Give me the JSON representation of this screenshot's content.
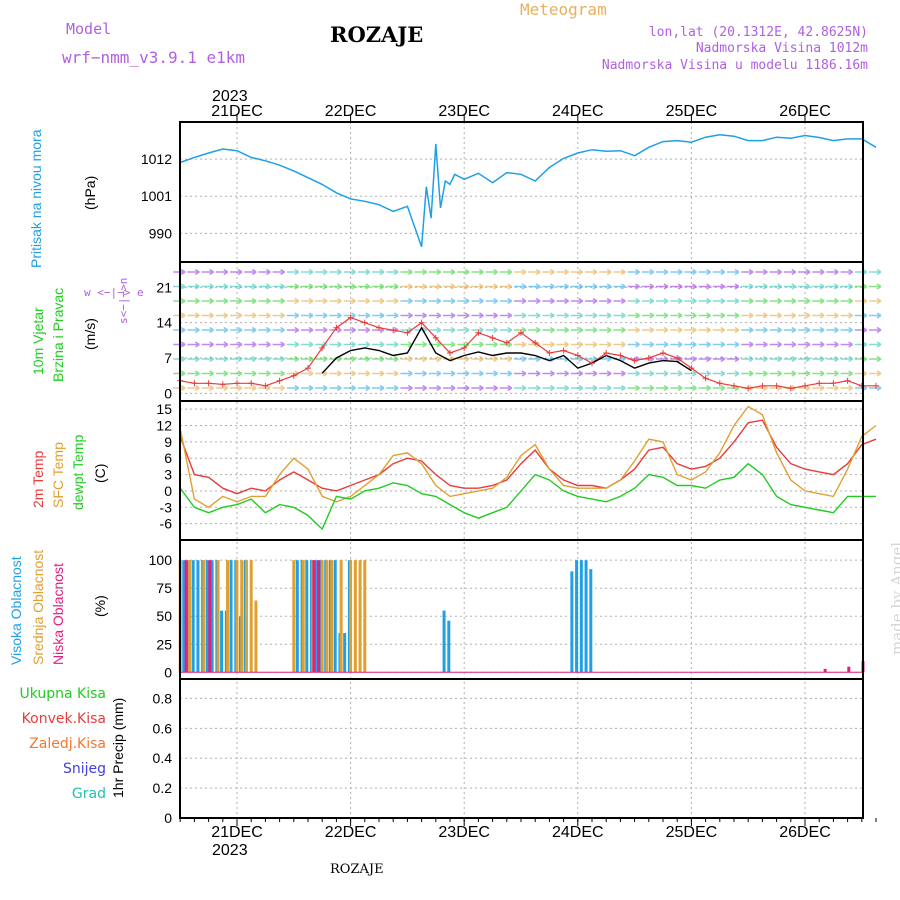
{
  "header": {
    "model_label": "Model",
    "model_name": "wrf−nmm_v3.9.1  e1km",
    "title": "ROZAJE",
    "meteogram_label": "Meteogram",
    "lonlat": "lon,lat (20.1312E, 42.8625N)",
    "elevation": "Nadmorska Visina 1012m",
    "model_elevation": "Nadmorska Visina u modelu 1186.16m",
    "year_top": "2023",
    "year_bottom": "2023",
    "footer_title": "ROZAJE",
    "watermark": "made by Angel"
  },
  "colors": {
    "pressure": "#1ea0e6",
    "temp2m": "#e83c3c",
    "sfc": "#e0a030",
    "dewpt": "#22cc22",
    "visoka": "#1ea0e6",
    "srednja": "#e0a030",
    "niska": "#e0207f",
    "ukupna": "#22cc22",
    "konvek": "#e83c3c",
    "zaledj": "#f07830",
    "snijeg": "#4040e0",
    "grad": "#20c0b0",
    "purple": "#b060e0",
    "orange": "#e8b060"
  },
  "panel_labels": {
    "pressure": {
      "name": "Pritisak na nivou mora",
      "unit": "(hPa)"
    },
    "wind": {
      "name1": "10m Vjetar",
      "name2": "Brzina i Pravac",
      "unit": "(m/s)",
      "compass": "w <−|−> e",
      "compass_v": "s<−|−>n"
    },
    "temp": {
      "name1": "2m Temp",
      "name2": "SFC Temp",
      "name3": "dewpt Temp",
      "unit": "(C)"
    },
    "cloud": {
      "name1": "Visoka Oblacnost",
      "name2": "Srednja Oblacnost",
      "name3": "Niska Oblacnost",
      "unit": "(%)"
    },
    "precip": {
      "unit": "1hr Precip (mm)",
      "legend": [
        "Ukupna Kisa",
        "Konvek.Kisa",
        "Zaledj.Kisa",
        "Snijeg",
        "Grad"
      ]
    }
  },
  "chart_data": [
    {
      "type": "line",
      "title": "",
      "ylabel": "(hPa)",
      "categories": [
        "21DEC",
        "22DEC",
        "23DEC",
        "24DEC",
        "25DEC",
        "26DEC"
      ],
      "yticks": [
        990,
        1001,
        1012
      ],
      "ylim": [
        981.5,
        1023
      ],
      "series": [
        {
          "name": "Pritisak na nivou mora",
          "x": [
            0,
            3,
            6,
            9,
            12,
            15,
            18,
            21,
            24,
            27,
            30,
            33,
            36,
            39,
            42,
            45,
            48,
            51,
            52,
            53,
            54,
            55,
            56,
            57,
            58,
            60,
            63,
            66,
            69,
            72,
            75,
            78,
            81,
            84,
            87,
            90,
            93,
            96,
            99,
            102,
            105,
            108,
            111,
            114,
            117,
            120,
            123,
            126,
            129,
            132,
            135,
            138,
            141,
            144,
            147
          ],
          "y": [
            1011,
            1012.5,
            1013.8,
            1015,
            1014.5,
            1012.5,
            1011.5,
            1010.2,
            1008.5,
            1006.5,
            1004.5,
            1002,
            1000.2,
            999.5,
            998.5,
            996.5,
            998,
            986,
            1003.8,
            994.5,
            1016.5,
            997.5,
            1005.5,
            1004.5,
            1007.5,
            1006,
            1007.8,
            1005,
            1008,
            1007.5,
            1005.5,
            1009.5,
            1012.2,
            1013.8,
            1014.8,
            1014.3,
            1014.5,
            1013,
            1015.5,
            1017.2,
            1017.5,
            1017,
            1018.5,
            1019.2,
            1018.8,
            1017.5,
            1017.5,
            1018.5,
            1018.2,
            1019,
            1018.4,
            1017.5,
            1018,
            1018,
            1015.5
          ]
        }
      ]
    },
    {
      "type": "line",
      "title": "",
      "ylabel": "(m/s)",
      "yticks": [
        0,
        7,
        14,
        21
      ],
      "ylim": [
        -1.5,
        26
      ],
      "series": [
        {
          "name": "10m wind speed",
          "x": [
            0,
            3,
            6,
            9,
            12,
            15,
            18,
            21,
            24,
            27,
            30,
            33,
            36,
            39,
            42,
            45,
            48,
            51,
            54,
            57,
            60,
            63,
            66,
            69,
            72,
            75,
            78,
            81,
            84,
            87,
            90,
            93,
            96,
            99,
            102,
            105,
            108,
            111,
            114,
            117,
            120,
            123,
            126,
            129,
            132,
            135,
            138,
            141,
            144,
            147
          ],
          "y": [
            2.5,
            2,
            2,
            1.8,
            2,
            2,
            1.5,
            2.5,
            3.5,
            5,
            9,
            13,
            15,
            14,
            13,
            12.5,
            12,
            14,
            11,
            8,
            9,
            12,
            11,
            10,
            12,
            10,
            8,
            8.5,
            7.5,
            6,
            8,
            7.5,
            6.5,
            7,
            8,
            7,
            5,
            3,
            2,
            1.5,
            1,
            1.5,
            1.5,
            1,
            1.5,
            2,
            2,
            2.5,
            1.5,
            1.5
          ]
        },
        {
          "name": "10m gust",
          "x": [
            30,
            33,
            36,
            39,
            42,
            45,
            48,
            51,
            54,
            57,
            60,
            63,
            66,
            69,
            72,
            75,
            78,
            81,
            84,
            87,
            90,
            93,
            96,
            99,
            102,
            105,
            108
          ],
          "y": [
            4,
            7,
            8.5,
            9,
            8.5,
            7.5,
            8,
            13,
            8,
            6.5,
            7.5,
            8.2,
            7.5,
            8,
            8,
            7.5,
            6.5,
            7.5,
            5,
            6,
            7.5,
            6.5,
            5,
            6,
            6.5,
            6.3,
            4.5
          ]
        }
      ]
    },
    {
      "type": "line",
      "title": "",
      "ylabel": "(C)",
      "yticks": [
        -6,
        -3,
        0,
        3,
        6,
        9,
        12,
        15
      ],
      "ylim": [
        -9,
        16.5
      ],
      "series": [
        {
          "name": "2m Temp",
          "x": [
            0,
            3,
            6,
            9,
            12,
            15,
            18,
            21,
            24,
            27,
            30,
            33,
            36,
            39,
            42,
            45,
            48,
            51,
            54,
            57,
            60,
            63,
            66,
            69,
            72,
            75,
            78,
            81,
            84,
            87,
            90,
            93,
            96,
            99,
            102,
            105,
            108,
            111,
            114,
            117,
            120,
            123,
            126,
            129,
            132,
            135,
            138,
            141,
            144,
            147
          ],
          "y": [
            10,
            3,
            2.5,
            0.5,
            -0.5,
            0.5,
            0,
            2,
            3.5,
            2,
            0.5,
            0,
            1,
            2,
            3,
            5,
            6,
            5.5,
            3,
            1,
            0.5,
            0.5,
            1,
            2,
            5,
            7.5,
            4,
            2,
            1,
            1,
            0.5,
            2,
            4,
            7.5,
            8,
            5,
            4,
            4.5,
            6,
            9,
            12.5,
            13,
            8,
            5,
            4,
            3.5,
            3,
            5,
            8.5,
            9.5
          ]
        },
        {
          "name": "SFC Temp",
          "x": [
            0,
            3,
            6,
            9,
            12,
            15,
            18,
            21,
            24,
            27,
            30,
            33,
            36,
            39,
            42,
            45,
            48,
            51,
            54,
            57,
            60,
            63,
            66,
            69,
            72,
            75,
            78,
            81,
            84,
            87,
            90,
            93,
            96,
            99,
            102,
            105,
            108,
            111,
            114,
            117,
            120,
            123,
            126,
            129,
            132,
            135,
            138,
            141,
            144,
            147
          ],
          "y": [
            11.5,
            -1.5,
            -3,
            -1,
            -2,
            -1,
            -1,
            3,
            6,
            4,
            -1,
            -2,
            -1,
            1,
            3,
            6.5,
            7,
            5,
            1,
            -1,
            -0.5,
            0,
            0.5,
            2.5,
            6.5,
            8.5,
            4,
            1,
            0.5,
            0.5,
            0.5,
            2,
            5.5,
            9.5,
            9,
            3,
            2,
            3.5,
            7,
            12,
            15.5,
            14,
            7,
            2,
            0,
            -0.5,
            -1,
            4,
            10,
            12
          ]
        },
        {
          "name": "dewpt Temp",
          "x": [
            0,
            3,
            6,
            9,
            12,
            15,
            18,
            21,
            24,
            27,
            30,
            33,
            36,
            39,
            42,
            45,
            48,
            51,
            54,
            57,
            60,
            63,
            66,
            69,
            72,
            75,
            78,
            81,
            84,
            87,
            90,
            93,
            96,
            99,
            102,
            105,
            108,
            111,
            114,
            117,
            120,
            123,
            126,
            129,
            132,
            135,
            138,
            141,
            144,
            147
          ],
          "y": [
            0.5,
            -3,
            -4,
            -3,
            -2.5,
            -1.5,
            -4,
            -2.5,
            -3,
            -4.5,
            -7,
            -1,
            -1.5,
            0,
            0.5,
            1.5,
            1,
            -0.5,
            -1,
            -2.5,
            -4,
            -5,
            -4,
            -3,
            0,
            3,
            2,
            0,
            -1,
            -1.5,
            -2,
            -1,
            0.5,
            3,
            2.5,
            1,
            1,
            0.5,
            2,
            2.5,
            5,
            3,
            -1,
            -2.5,
            -3,
            -3.5,
            -4,
            -1,
            -1,
            -1
          ]
        }
      ]
    },
    {
      "type": "bar",
      "title": "",
      "ylabel": "(%)",
      "yticks": [
        0,
        25,
        50,
        75,
        100
      ],
      "ylim": [
        -6,
        118
      ],
      "series": [
        {
          "name": "Visoka Oblacnost",
          "x": [
            1,
            2,
            3,
            4,
            5,
            6,
            7,
            8,
            9,
            10,
            11,
            12,
            13,
            14,
            25,
            26,
            27,
            28,
            29,
            30,
            31,
            32,
            33,
            34,
            35,
            36,
            56,
            57,
            83,
            84,
            85,
            86,
            87
          ],
          "y": [
            100,
            100,
            100,
            100,
            100,
            100,
            100,
            100,
            55,
            55,
            100,
            100,
            50,
            100,
            100,
            100,
            100,
            100,
            100,
            100,
            100,
            100,
            100,
            35,
            35,
            100,
            55,
            46,
            90,
            100,
            100,
            100,
            92
          ]
        },
        {
          "name": "Srednja Oblacnost",
          "x": [
            0,
            2,
            5,
            8,
            10,
            12,
            13,
            14,
            15,
            16,
            24,
            26,
            28,
            30,
            31,
            32,
            34,
            36,
            37,
            38,
            39
          ],
          "y": [
            100,
            100,
            100,
            100,
            100,
            100,
            100,
            100,
            100,
            64,
            100,
            100,
            100,
            100,
            100,
            100,
            100,
            100,
            100,
            100,
            100
          ]
        },
        {
          "name": "Niska Oblacnost",
          "x": [
            1,
            6,
            28,
            29,
            136,
            141,
            144
          ],
          "y": [
            100,
            100,
            100,
            100,
            3,
            5,
            10
          ]
        }
      ]
    },
    {
      "type": "bar",
      "title": "",
      "ylabel": "1hr Precip (mm)",
      "yticks": [
        0,
        0.2,
        0.4,
        0.6,
        0.8
      ],
      "ylim": [
        0,
        0.93
      ],
      "series": []
    }
  ]
}
